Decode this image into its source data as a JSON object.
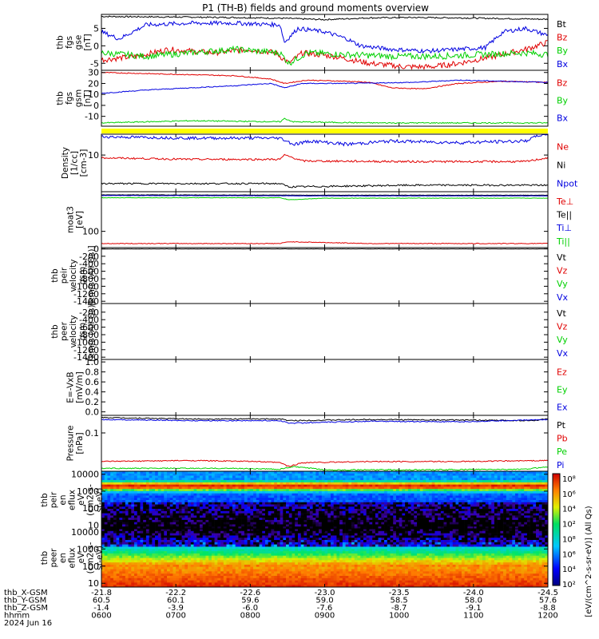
{
  "title": "P1 (TH-B) fields and ground moments overview",
  "colors": {
    "black": "#000000",
    "red": "#e00000",
    "green": "#00d000",
    "blue": "#0000e0",
    "yellow": "#ffff00"
  },
  "chart_data": [
    {
      "type": "line",
      "id": "fgs_gse",
      "ylabel": [
        "thb",
        "fgs",
        "gse",
        "[nT]"
      ],
      "ylim": [
        -7,
        9
      ],
      "ticks": [
        {
          "v": 5,
          "label": "5"
        },
        {
          "v": 0,
          "label": "0"
        },
        {
          "v": -5,
          "label": "-5"
        }
      ],
      "series": [
        {
          "name": "Bt",
          "color": "#000000",
          "x": [
            0,
            0.1,
            0.2,
            0.3,
            0.4,
            0.5,
            0.6,
            0.7,
            0.8,
            0.9,
            1
          ],
          "y": [
            8.4,
            8.3,
            8.2,
            8.1,
            7.9,
            7.5,
            8.0,
            8.1,
            8.0,
            7.8,
            7.6
          ],
          "noise": 0.2
        },
        {
          "name": "Bz",
          "color": "#e00000",
          "x": [
            0,
            0.08,
            0.15,
            0.25,
            0.33,
            0.39,
            0.42,
            0.45,
            0.52,
            0.6,
            0.68,
            0.74,
            0.8,
            0.88,
            0.95,
            1
          ],
          "y": [
            -4,
            -3,
            -1,
            -2,
            -1,
            -2,
            -5,
            -2,
            -3,
            -5,
            -6,
            -6,
            -5,
            -3,
            -1,
            1
          ],
          "noise": 0.8
        },
        {
          "name": "By",
          "color": "#00d000",
          "x": [
            0,
            0.1,
            0.2,
            0.3,
            0.4,
            0.42,
            0.46,
            0.55,
            0.65,
            0.75,
            0.85,
            0.95,
            1
          ],
          "y": [
            -2,
            -3,
            -2,
            -1,
            -2,
            -5,
            -2,
            -2.5,
            -3,
            -3,
            -2.5,
            -2,
            -2.5
          ],
          "noise": 0.9
        },
        {
          "name": "Bx",
          "color": "#0000e0",
          "x": [
            0,
            0.04,
            0.1,
            0.2,
            0.3,
            0.4,
            0.41,
            0.44,
            0.5,
            0.55,
            0.58,
            0.65,
            0.73,
            0.8,
            0.86,
            0.9,
            0.95,
            1
          ],
          "y": [
            4,
            2,
            6,
            6.5,
            6.5,
            6,
            1,
            5,
            4,
            2,
            0,
            -1,
            -1.5,
            -1,
            -0.5,
            4,
            5,
            3
          ],
          "noise": 0.6
        }
      ]
    },
    {
      "type": "line",
      "id": "fgs_gsm",
      "ylabel": [
        "thb",
        "fgs",
        "gsm",
        "[nT]"
      ],
      "ylim": [
        -19,
        32
      ],
      "ticks": [
        {
          "v": 30,
          "label": "30"
        },
        {
          "v": 20,
          "label": "20"
        },
        {
          "v": 10,
          "label": "10"
        },
        {
          "v": 0,
          "label": "0"
        },
        {
          "v": -10,
          "label": "-10"
        }
      ],
      "series": [
        {
          "name": "Bz",
          "color": "#e00000",
          "x": [
            0,
            0.2,
            0.3,
            0.38,
            0.41,
            0.46,
            0.55,
            0.6,
            0.65,
            0.72,
            0.8,
            0.9,
            1
          ],
          "y": [
            30,
            28,
            27,
            24,
            20,
            23,
            22,
            21,
            16,
            15,
            20,
            22,
            21
          ],
          "noise": 0.4
        },
        {
          "name": "By",
          "color": "#00d000",
          "x": [
            0,
            0.2,
            0.4,
            0.41,
            0.43,
            0.6,
            0.8,
            1
          ],
          "y": [
            -16,
            -14,
            -15,
            -12,
            -15,
            -16,
            -16,
            -16
          ],
          "noise": 0.5
        },
        {
          "name": "Bx",
          "color": "#0000e0",
          "x": [
            0,
            0.1,
            0.2,
            0.3,
            0.38,
            0.41,
            0.45,
            0.55,
            0.7,
            0.8,
            0.9,
            1
          ],
          "y": [
            11,
            14,
            16,
            18,
            20,
            16,
            20,
            20,
            21,
            23,
            22,
            21
          ],
          "noise": 0.4
        }
      ]
    },
    {
      "type": "line",
      "id": "density",
      "ylabel": [
        "Density",
        "[1/cc]",
        "[cm-3]"
      ],
      "ylim": [
        2.5,
        22
      ],
      "log": true,
      "ticks": [
        {
          "v": 10,
          "label": "10"
        }
      ],
      "series": [
        {
          "name": "Ne",
          "color": "#e00000",
          "x": [
            0,
            0.2,
            0.4,
            0.41,
            0.45,
            0.7,
            0.95,
            1
          ],
          "y": [
            9,
            8.5,
            8.5,
            10,
            8,
            7.8,
            7.8,
            9
          ],
          "noise": 0.3
        },
        {
          "name": "Ni",
          "color": "#000000",
          "x": [
            0,
            0.2,
            0.4,
            0.42,
            0.7,
            1
          ],
          "y": [
            3.4,
            3.4,
            3.4,
            3.0,
            3.2,
            3.2
          ],
          "noise": 0.1
        },
        {
          "name": "Npot",
          "color": "#0000e0",
          "x": [
            0,
            0.2,
            0.4,
            0.43,
            0.47,
            0.55,
            0.65,
            0.8,
            0.95,
            0.98,
            1
          ],
          "y": [
            20,
            19,
            19,
            15,
            17,
            15,
            17,
            16,
            17,
            21,
            22
          ],
          "noise": 1.0
        }
      ]
    },
    {
      "type": "line",
      "id": "temperature",
      "ylabel": [
        "moat3",
        "[eV]"
      ],
      "ylim": [
        45,
        700
      ],
      "log": true,
      "ticks": [
        {
          "v": 100,
          "label": "100"
        }
      ],
      "series": [
        {
          "name": "Te⊥",
          "color": "#e00000",
          "x": [
            0,
            0.4,
            0.42,
            0.6,
            1
          ],
          "y": [
            55,
            55,
            60,
            55,
            55
          ],
          "noise": 1
        },
        {
          "name": "Te||",
          "color": "#000000",
          "x": [
            0,
            0.5,
            1
          ],
          "y": [
            600,
            590,
            590
          ],
          "noise": 5
        },
        {
          "name": "Ti⊥",
          "color": "#0000e0",
          "x": [
            0,
            0.5,
            1
          ],
          "y": [
            580,
            570,
            570
          ],
          "noise": 5
        },
        {
          "name": "Ti||",
          "color": "#00d000",
          "x": [
            0,
            0.4,
            0.42,
            0.5,
            1
          ],
          "y": [
            520,
            520,
            470,
            510,
            510
          ],
          "noise": 5
        }
      ]
    },
    {
      "type": "line",
      "id": "peir_velocity",
      "ylabel": [
        "thb",
        "peir",
        "velocity",
        "gsm",
        "[km/s (All Qs)]"
      ],
      "ylim": [
        -1460,
        30
      ],
      "ticks": [
        {
          "v": 0,
          "label": "0"
        },
        {
          "v": -200,
          "label": "-200"
        },
        {
          "v": -400,
          "label": "-400"
        },
        {
          "v": -600,
          "label": "-600"
        },
        {
          "v": -800,
          "label": "-800"
        },
        {
          "v": -1000,
          "label": "-1000"
        },
        {
          "v": -1200,
          "label": "-1200"
        },
        {
          "v": -1400,
          "label": "-1400"
        }
      ],
      "series": [
        {
          "name": "Vt",
          "color": "#000000",
          "x": [
            0,
            1
          ],
          "y": [
            -5,
            -5
          ],
          "noise": 3
        }
      ]
    },
    {
      "type": "line",
      "id": "peer_velocity",
      "ylabel": [
        "thb",
        "peer",
        "velocity",
        "gsm",
        "[km/s (All Qs)]"
      ],
      "ylim": [
        -1460,
        30
      ],
      "ticks": [
        {
          "v": -200,
          "label": "-200"
        },
        {
          "v": -400,
          "label": "-400"
        },
        {
          "v": -600,
          "label": "-600"
        },
        {
          "v": -800,
          "label": "-800"
        },
        {
          "v": -1000,
          "label": "-1000"
        },
        {
          "v": -1200,
          "label": "-1200"
        },
        {
          "v": -1400,
          "label": "-1400"
        }
      ],
      "series": []
    },
    {
      "type": "line",
      "id": "efield",
      "ylabel": [
        "E=-VxB",
        "[mV/m]"
      ],
      "ylim": [
        -0.07,
        1.05
      ],
      "ticks": [
        {
          "v": 1.0,
          "label": "1.0"
        },
        {
          "v": 0.8,
          "label": "0.8"
        },
        {
          "v": 0.6,
          "label": "0.6"
        },
        {
          "v": 0.4,
          "label": "0.4"
        },
        {
          "v": 0.2,
          "label": "0.2"
        },
        {
          "v": 0.0,
          "label": "0.0"
        }
      ],
      "series": []
    },
    {
      "type": "line",
      "id": "pressure",
      "ylabel": [
        "Pressure",
        "[nPa]"
      ],
      "ylim": [
        0.0065,
        0.35
      ],
      "log": true,
      "ticks": [
        {
          "v": 0.1,
          "label": "0.1"
        }
      ],
      "series": [
        {
          "name": "Pt",
          "color": "#000000",
          "x": [
            0,
            0.2,
            0.4,
            0.42,
            0.6,
            0.8,
            0.97,
            1
          ],
          "y": [
            0.3,
            0.27,
            0.27,
            0.24,
            0.26,
            0.25,
            0.24,
            0.28
          ],
          "noise": 0.01
        },
        {
          "name": "Pb",
          "color": "#e00000",
          "x": [
            0,
            0.2,
            0.35,
            0.4,
            0.42,
            0.45,
            0.6,
            0.8,
            1
          ],
          "y": [
            0.013,
            0.014,
            0.013,
            0.012,
            0.009,
            0.012,
            0.013,
            0.013,
            0.014
          ],
          "noise": 0.0005
        },
        {
          "name": "Pe",
          "color": "#00d000",
          "x": [
            0,
            0.3,
            0.4,
            0.43,
            0.5,
            0.7,
            0.95,
            1
          ],
          "y": [
            0.008,
            0.008,
            0.0075,
            0.009,
            0.0072,
            0.0072,
            0.0075,
            0.009
          ],
          "noise": 0.0003
        },
        {
          "name": "Pi",
          "color": "#0000e0",
          "x": [
            0,
            0.2,
            0.4,
            0.42,
            0.6,
            0.8,
            1
          ],
          "y": [
            0.26,
            0.24,
            0.24,
            0.2,
            0.23,
            0.22,
            0.26
          ],
          "noise": 0.008
        }
      ]
    },
    {
      "type": "heatmap",
      "id": "peir_eflux",
      "ylabel": [
        "thb",
        "peir",
        "en",
        "eflux",
        "eV",
        "(cm2-s-",
        "sr-eV)"
      ],
      "ylim": [
        6,
        15000
      ],
      "log": true,
      "ticks": [
        {
          "v": 10000,
          "label": "10000"
        },
        {
          "v": 1000,
          "label": "1000"
        },
        {
          "v": 100,
          "label": "100"
        },
        {
          "v": 10,
          "label": "10"
        }
      ]
    },
    {
      "type": "heatmap",
      "id": "peer_eflux",
      "ylabel": [
        "thb",
        "peer",
        "en",
        "eflux",
        "eV",
        "(cm2-s-",
        "sr-eV)"
      ],
      "ylim": [
        6,
        15000
      ],
      "log": true,
      "ticks": [
        {
          "v": 10000,
          "label": "10000"
        },
        {
          "v": 1000,
          "label": "1000"
        },
        {
          "v": 100,
          "label": "100"
        },
        {
          "v": 10,
          "label": "10"
        }
      ]
    }
  ],
  "colorbar": {
    "label": "[eV/(cm^2-s-sr-eV)] (All Qs)",
    "ticks": [
      "10⁸",
      "10⁶",
      "10⁴",
      "10²",
      "10⁸",
      "10⁶",
      "10⁴",
      "10²"
    ]
  },
  "xaxis": {
    "row_labels": [
      "thb_X-GSM",
      "thb_Y-GSM",
      "thb_Z-GSM",
      "hhmm",
      "2024 Jun 16"
    ],
    "columns": [
      [
        "-21.8",
        "60.5",
        "-1.4",
        "0600"
      ],
      [
        "-22.2",
        "60.1",
        "-3.9",
        "0700"
      ],
      [
        "-22.6",
        "59.6",
        "-6.0",
        "0800"
      ],
      [
        "-23.0",
        "59.0",
        "-7.6",
        "0900"
      ],
      [
        "-23.5",
        "58.5",
        "-8.7",
        "1000"
      ],
      [
        "-24.0",
        "58.0",
        "-9.1",
        "1100"
      ],
      [
        "-24.5",
        "57.6",
        "-8.8",
        "1200"
      ]
    ]
  },
  "legends": [
    [
      {
        "t": "Bt",
        "c": "#000000"
      },
      {
        "t": "Bz",
        "c": "#e00000"
      },
      {
        "t": "By",
        "c": "#00d000"
      },
      {
        "t": "Bx",
        "c": "#0000e0"
      }
    ],
    [
      {
        "t": "Bz",
        "c": "#e00000"
      },
      {
        "t": "By",
        "c": "#00d000"
      },
      {
        "t": "Bx",
        "c": "#0000e0"
      }
    ],
    [
      {
        "t": "Ne",
        "c": "#e00000"
      },
      {
        "t": "Ni",
        "c": "#000000"
      },
      {
        "t": "Npot",
        "c": "#0000e0"
      }
    ],
    [
      {
        "t": "Te⊥",
        "c": "#e00000"
      },
      {
        "t": "Te||",
        "c": "#000000"
      },
      {
        "t": "Ti⊥",
        "c": "#0000e0"
      },
      {
        "t": "Ti||",
        "c": "#00d000"
      }
    ],
    [
      {
        "t": "Vt",
        "c": "#000000"
      },
      {
        "t": "Vz",
        "c": "#e00000"
      },
      {
        "t": "Vy",
        "c": "#00d000"
      },
      {
        "t": "Vx",
        "c": "#0000e0"
      }
    ],
    [
      {
        "t": "Vt",
        "c": "#000000"
      },
      {
        "t": "Vz",
        "c": "#e00000"
      },
      {
        "t": "Vy",
        "c": "#00d000"
      },
      {
        "t": "Vx",
        "c": "#0000e0"
      }
    ],
    [
      {
        "t": "Ez",
        "c": "#e00000"
      },
      {
        "t": "Ey",
        "c": "#00d000"
      },
      {
        "t": "Ex",
        "c": "#0000e0"
      }
    ],
    [
      {
        "t": "Pt",
        "c": "#000000"
      },
      {
        "t": "Pb",
        "c": "#e00000"
      },
      {
        "t": "Pe",
        "c": "#00d000"
      },
      {
        "t": "Pi",
        "c": "#0000e0"
      }
    ],
    [],
    []
  ]
}
